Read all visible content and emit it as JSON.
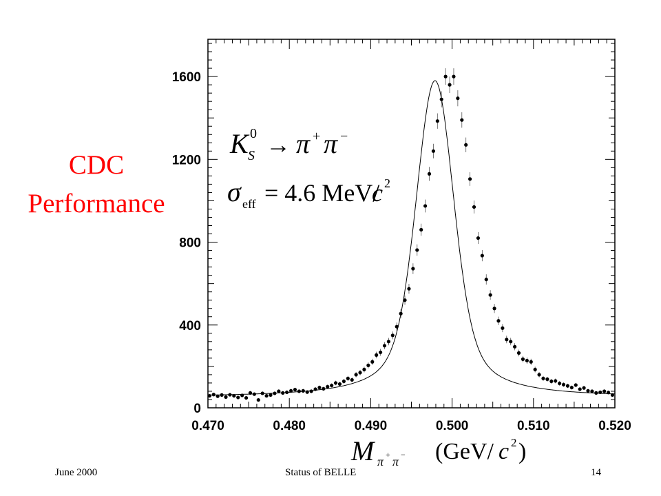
{
  "title": {
    "line1": "CDC",
    "line2": "Performance"
  },
  "footer": {
    "left": "June 2000",
    "center": "Status of BELLE",
    "right": "14"
  },
  "annotation": {
    "decay": {
      "particle": "K",
      "sup": "0",
      "sub": "S",
      "arrow": "→",
      "product": "π",
      "plus": "+",
      "minus": "−"
    },
    "sigma": {
      "symbol": "σ",
      "sub": "eff",
      "value": "= 4.6 MeV/",
      "c": "c",
      "exp": "2"
    }
  },
  "xlabel": {
    "M": "M",
    "sub_pi1": "π",
    "sup1": "+",
    "sub_pi2": "π",
    "sup2": "−",
    "units": "(GeV/",
    "c": "c",
    "exp": "2",
    "close": ")"
  },
  "chart_data": {
    "type": "scatter",
    "xlim": [
      0.47,
      0.52
    ],
    "ylim": [
      0,
      1780
    ],
    "x_ticks": [
      "0.470",
      "0.480",
      "0.490",
      "0.500",
      "0.510",
      "0.520"
    ],
    "x_tick_values": [
      0.47,
      0.48,
      0.49,
      0.5,
      0.51,
      0.52
    ],
    "y_ticks": [
      "0",
      "400",
      "800",
      "1200",
      "1600"
    ],
    "y_tick_values": [
      0,
      400,
      800,
      1200,
      1600
    ],
    "fit": {
      "mean": 0.4979,
      "sigma": 0.0022,
      "peak": 1580,
      "background": 52
    },
    "series": [
      {
        "points": [
          [
            0.4702,
            58
          ],
          [
            0.4707,
            64
          ],
          [
            0.4712,
            56
          ],
          [
            0.4717,
            62
          ],
          [
            0.4722,
            52
          ],
          [
            0.4727,
            63
          ],
          [
            0.4732,
            58
          ],
          [
            0.4737,
            50
          ],
          [
            0.4742,
            60
          ],
          [
            0.4747,
            48
          ],
          [
            0.4752,
            72
          ],
          [
            0.4757,
            66
          ],
          [
            0.4762,
            38
          ],
          [
            0.4767,
            70
          ],
          [
            0.4772,
            58
          ],
          [
            0.4777,
            62
          ],
          [
            0.4782,
            70
          ],
          [
            0.4787,
            80
          ],
          [
            0.4792,
            72
          ],
          [
            0.4797,
            75
          ],
          [
            0.4802,
            82
          ],
          [
            0.4807,
            88
          ],
          [
            0.4812,
            80
          ],
          [
            0.4817,
            82
          ],
          [
            0.4822,
            76
          ],
          [
            0.4827,
            80
          ],
          [
            0.4832,
            90
          ],
          [
            0.4837,
            98
          ],
          [
            0.4842,
            92
          ],
          [
            0.4847,
            102
          ],
          [
            0.4852,
            108
          ],
          [
            0.4857,
            120
          ],
          [
            0.4862,
            115
          ],
          [
            0.4867,
            128
          ],
          [
            0.4872,
            142
          ],
          [
            0.4877,
            135
          ],
          [
            0.4882,
            160
          ],
          [
            0.4887,
            170
          ],
          [
            0.4892,
            185
          ],
          [
            0.4897,
            205
          ],
          [
            0.4902,
            222
          ],
          [
            0.4907,
            255
          ],
          [
            0.4912,
            268
          ],
          [
            0.4917,
            300
          ],
          [
            0.4922,
            320
          ],
          [
            0.4927,
            350
          ],
          [
            0.4932,
            392
          ],
          [
            0.4937,
            455
          ],
          [
            0.4942,
            520
          ],
          [
            0.4947,
            575
          ],
          [
            0.4952,
            672
          ],
          [
            0.4957,
            762
          ],
          [
            0.4962,
            860
          ],
          [
            0.4967,
            975
          ],
          [
            0.4972,
            1130
          ],
          [
            0.4977,
            1240
          ],
          [
            0.4982,
            1385
          ],
          [
            0.4987,
            1490
          ],
          [
            0.4992,
            1600
          ],
          [
            0.4997,
            1560
          ],
          [
            0.5002,
            1600
          ],
          [
            0.5007,
            1495
          ],
          [
            0.5012,
            1390
          ],
          [
            0.5017,
            1270
          ],
          [
            0.5022,
            1105
          ],
          [
            0.5027,
            970
          ],
          [
            0.5032,
            820
          ],
          [
            0.5037,
            735
          ],
          [
            0.5042,
            620
          ],
          [
            0.5047,
            545
          ],
          [
            0.5052,
            480
          ],
          [
            0.5057,
            420
          ],
          [
            0.5062,
            385
          ],
          [
            0.5067,
            330
          ],
          [
            0.5072,
            320
          ],
          [
            0.5077,
            295
          ],
          [
            0.5082,
            265
          ],
          [
            0.5087,
            235
          ],
          [
            0.5092,
            228
          ],
          [
            0.5097,
            222
          ],
          [
            0.5102,
            185
          ],
          [
            0.5107,
            160
          ],
          [
            0.5112,
            142
          ],
          [
            0.5117,
            138
          ],
          [
            0.5122,
            128
          ],
          [
            0.5127,
            130
          ],
          [
            0.5132,
            118
          ],
          [
            0.5137,
            112
          ],
          [
            0.5142,
            106
          ],
          [
            0.5147,
            98
          ],
          [
            0.5152,
            110
          ],
          [
            0.5157,
            90
          ],
          [
            0.5162,
            96
          ],
          [
            0.5167,
            82
          ],
          [
            0.5172,
            80
          ],
          [
            0.5177,
            72
          ],
          [
            0.5182,
            75
          ],
          [
            0.5187,
            80
          ],
          [
            0.5192,
            74
          ],
          [
            0.5197,
            62
          ]
        ]
      }
    ]
  }
}
